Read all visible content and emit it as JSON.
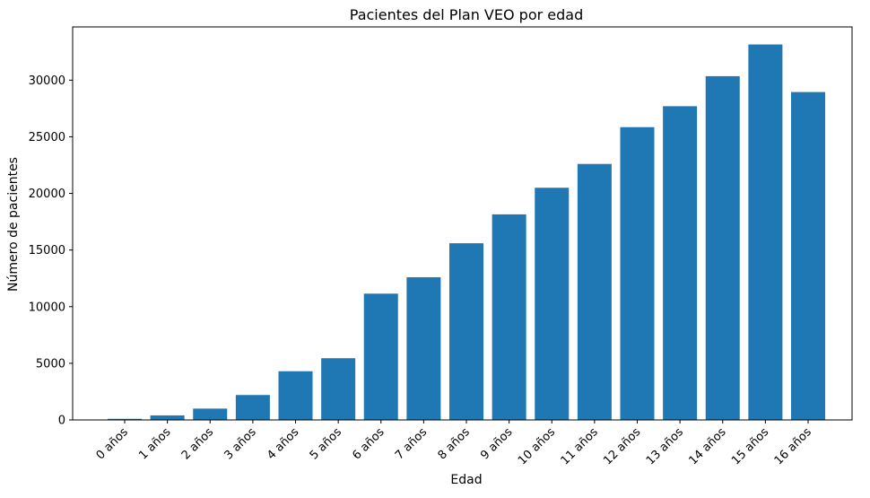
{
  "chart_data": {
    "type": "bar",
    "title": "Pacientes del Plan VEO por edad",
    "xlabel": "Edad",
    "ylabel": "Número de pacientes",
    "categories": [
      "0 años",
      "1 años",
      "2 años",
      "3 años",
      "4 años",
      "5 años",
      "6 años",
      "7 años",
      "8 años",
      "9 años",
      "10 años",
      "11 años",
      "12 años",
      "13 años",
      "14 años",
      "15 años",
      "16 años"
    ],
    "values": [
      100,
      400,
      1000,
      2200,
      4300,
      5450,
      11150,
      12600,
      15600,
      18150,
      20500,
      22600,
      25850,
      27700,
      30350,
      33150,
      28950
    ],
    "ylim": [
      0,
      34700
    ],
    "yticks": [
      0,
      5000,
      10000,
      15000,
      20000,
      25000,
      30000
    ],
    "grid": false,
    "bar_color": "#1f77b4"
  }
}
